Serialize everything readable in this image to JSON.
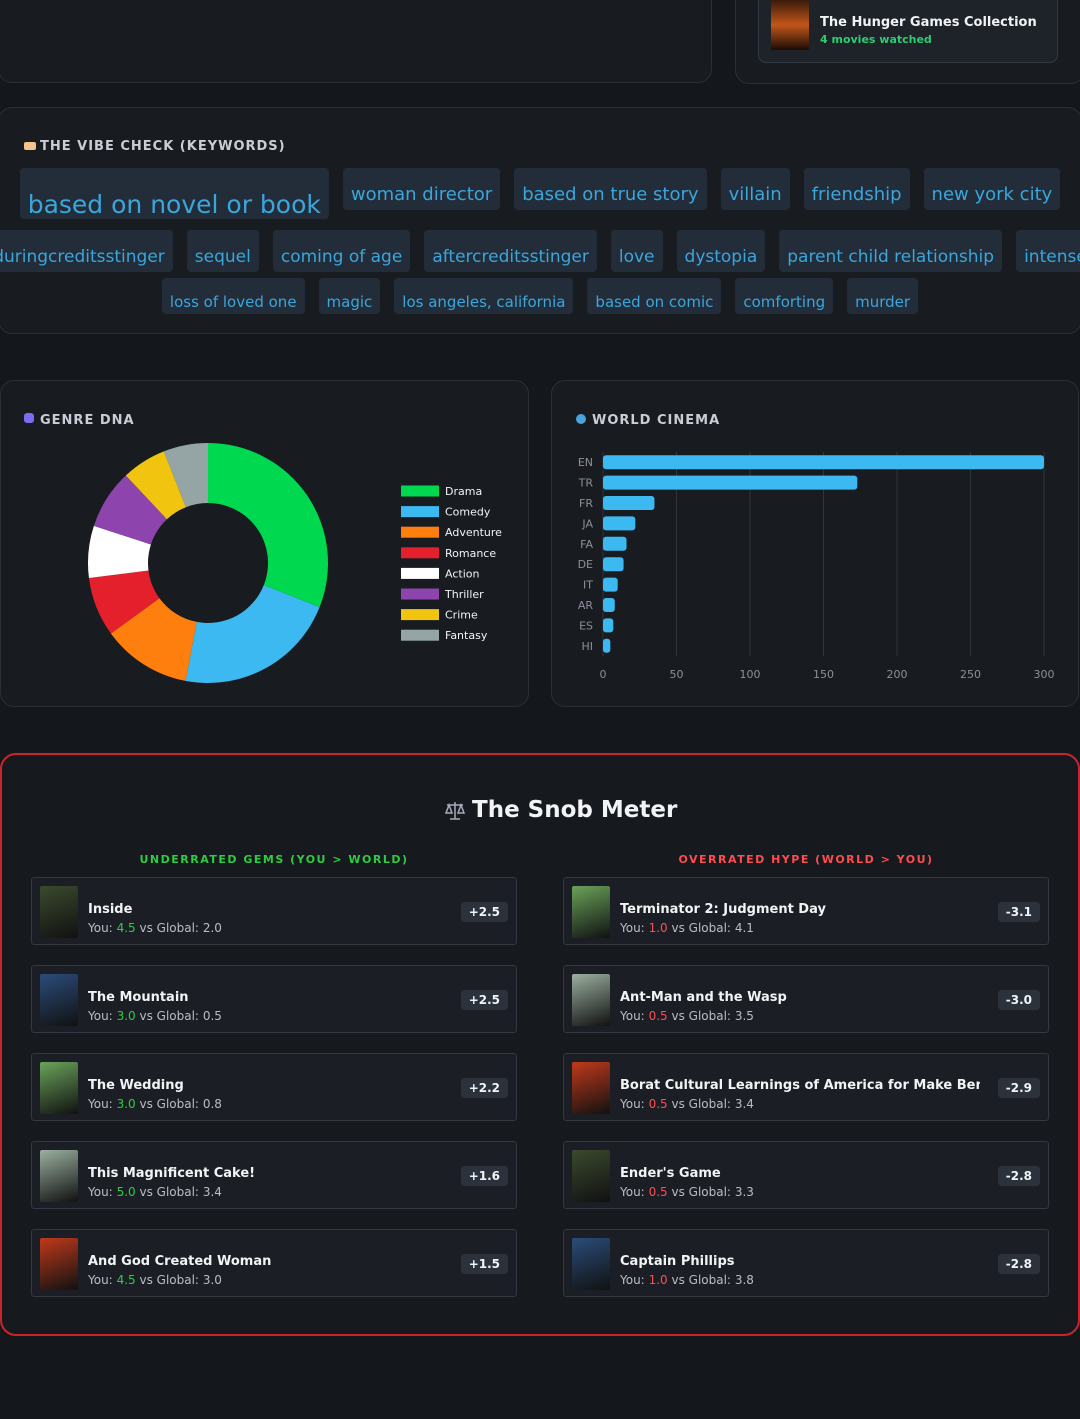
{
  "collection": {
    "title": "The Hunger Games Collection",
    "count": "4 movies watched"
  },
  "vibe_check": {
    "title": "THE VIBE CHECK (KEYWORDS)",
    "keywords": [
      "based on novel or book",
      "woman director",
      "based on true story",
      "villain",
      "friendship",
      "new york city",
      "duringcreditsstinger",
      "sequel",
      "coming of age",
      "aftercreditsstinger",
      "love",
      "dystopia",
      "parent child relationship",
      "intense",
      "loss of loved one",
      "magic",
      "los angeles, california",
      "based on comic",
      "comforting",
      "murder"
    ]
  },
  "chart_data": [
    {
      "type": "donut",
      "title": "GENRE DNA",
      "categories": [
        "Drama",
        "Comedy",
        "Adventure",
        "Romance",
        "Action",
        "Thriller",
        "Crime",
        "Fantasy"
      ],
      "values": [
        31,
        22,
        12,
        8,
        7,
        8,
        6,
        6
      ],
      "colors": [
        "#00d94f",
        "#3bb9f0",
        "#ff7f0e",
        "#e3202b",
        "#ffffff",
        "#8e44ad",
        "#f1c40f",
        "#95a5a6"
      ],
      "legend": "right"
    },
    {
      "type": "bar",
      "title": "WORLD CINEMA",
      "orientation": "horizontal",
      "categories": [
        "EN",
        "TR",
        "FR",
        "JA",
        "FA",
        "DE",
        "IT",
        "AR",
        "ES",
        "HI"
      ],
      "values": [
        300,
        173,
        35,
        22,
        16,
        14,
        10,
        8,
        7,
        5
      ],
      "color": "#3bb9f0",
      "xlim": [
        0,
        300
      ],
      "xticks": [
        0,
        50,
        100,
        150,
        200,
        250,
        300
      ],
      "grid": true
    }
  ],
  "snob_meter": {
    "title": "The Snob Meter",
    "you_label": "You:",
    "global_label": "vs Global:",
    "underrated": {
      "heading": "UNDERRATED GEMS (YOU > WORLD)",
      "items": [
        {
          "title": "Inside",
          "you": "4.5",
          "global": "2.0",
          "diff": "+2.5"
        },
        {
          "title": "The Mountain",
          "you": "3.0",
          "global": "0.5",
          "diff": "+2.5"
        },
        {
          "title": "The Wedding",
          "you": "3.0",
          "global": "0.8",
          "diff": "+2.2"
        },
        {
          "title": "This Magnificent Cake!",
          "you": "5.0",
          "global": "3.4",
          "diff": "+1.6"
        },
        {
          "title": "And God Created Woman",
          "you": "4.5",
          "global": "3.0",
          "diff": "+1.5"
        }
      ]
    },
    "overrated": {
      "heading": "OVERRATED HYPE (WORLD > YOU)",
      "items": [
        {
          "title": "Terminator 2: Judgment Day",
          "you": "1.0",
          "global": "4.1",
          "diff": "-3.1"
        },
        {
          "title": "Ant-Man and the Wasp",
          "you": "0.5",
          "global": "3.5",
          "diff": "-3.0"
        },
        {
          "title": "Borat Cultural Learnings of America for Make Benefit Glo",
          "you": "0.5",
          "global": "3.4",
          "diff": "-2.9"
        },
        {
          "title": "Ender's Game",
          "you": "0.5",
          "global": "3.3",
          "diff": "-2.8"
        },
        {
          "title": "Captain Phillips",
          "you": "1.0",
          "global": "3.8",
          "diff": "-2.8"
        }
      ]
    }
  }
}
